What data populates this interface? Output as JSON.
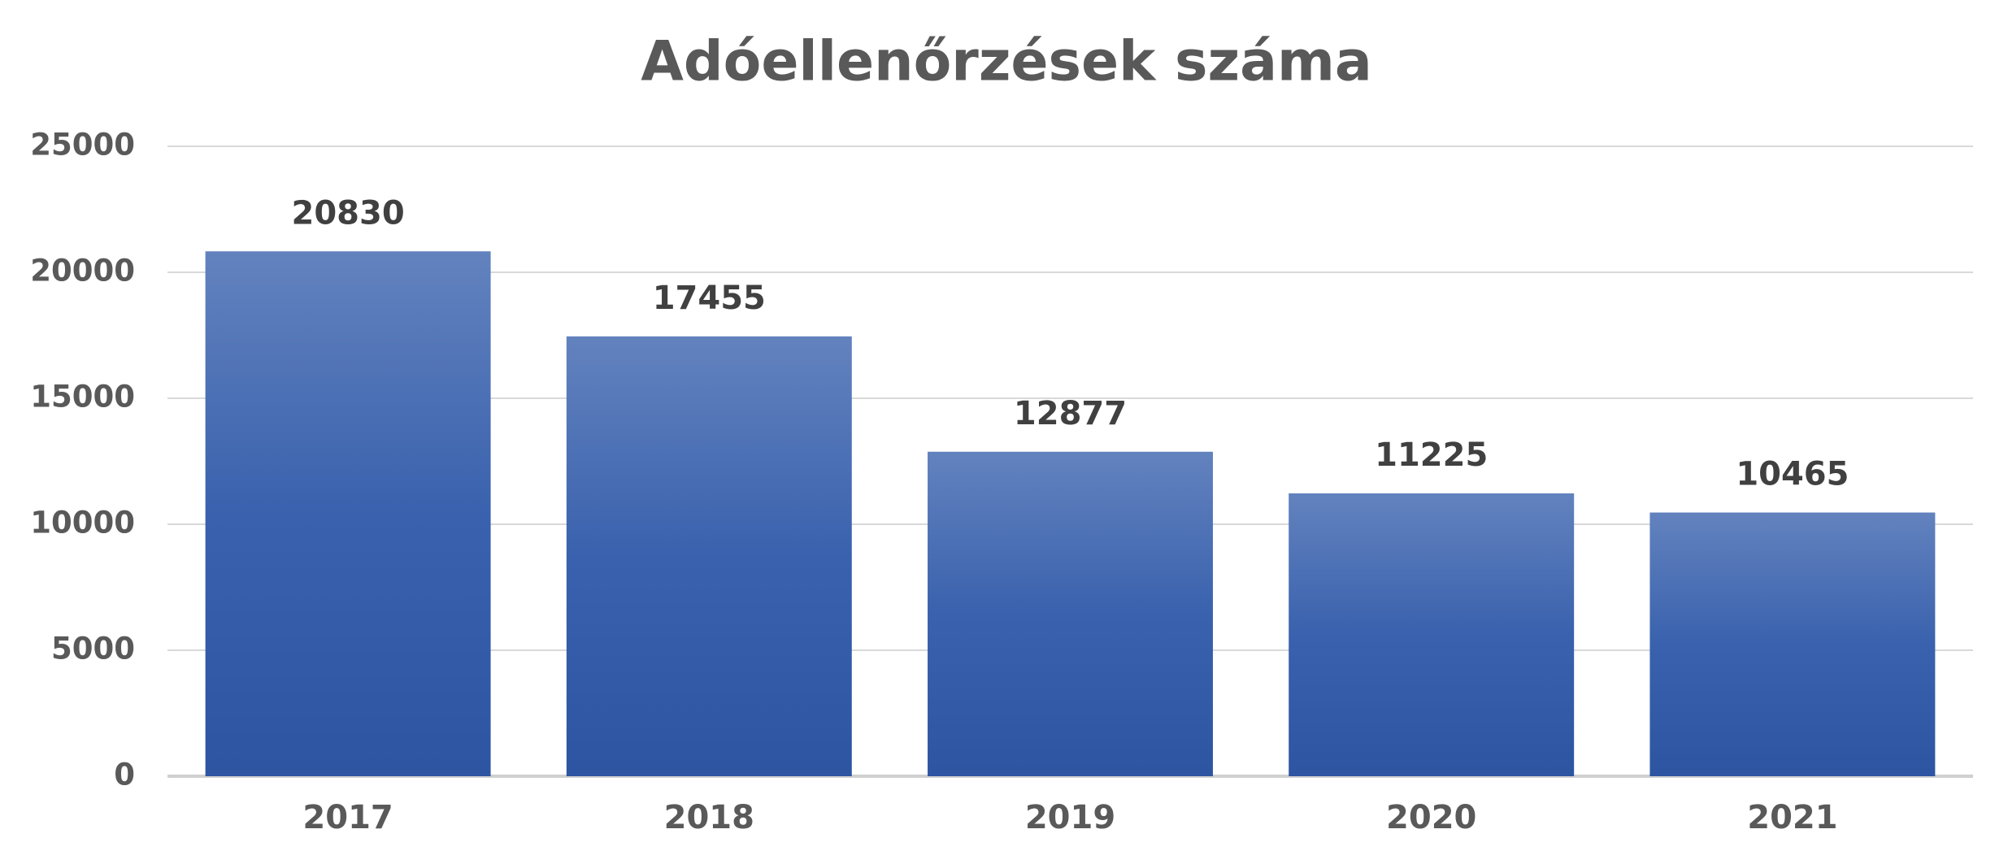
{
  "chart_data": {
    "type": "bar",
    "title": "Adóellenőrzések száma",
    "categories": [
      "2017",
      "2018",
      "2019",
      "2020",
      "2021"
    ],
    "values": [
      20830,
      17455,
      12877,
      11225,
      10465
    ],
    "color": "#2f59a9",
    "ylim": [
      0,
      25000
    ],
    "yticks": [
      0,
      5000,
      10000,
      15000,
      20000,
      25000
    ],
    "grid": true
  }
}
